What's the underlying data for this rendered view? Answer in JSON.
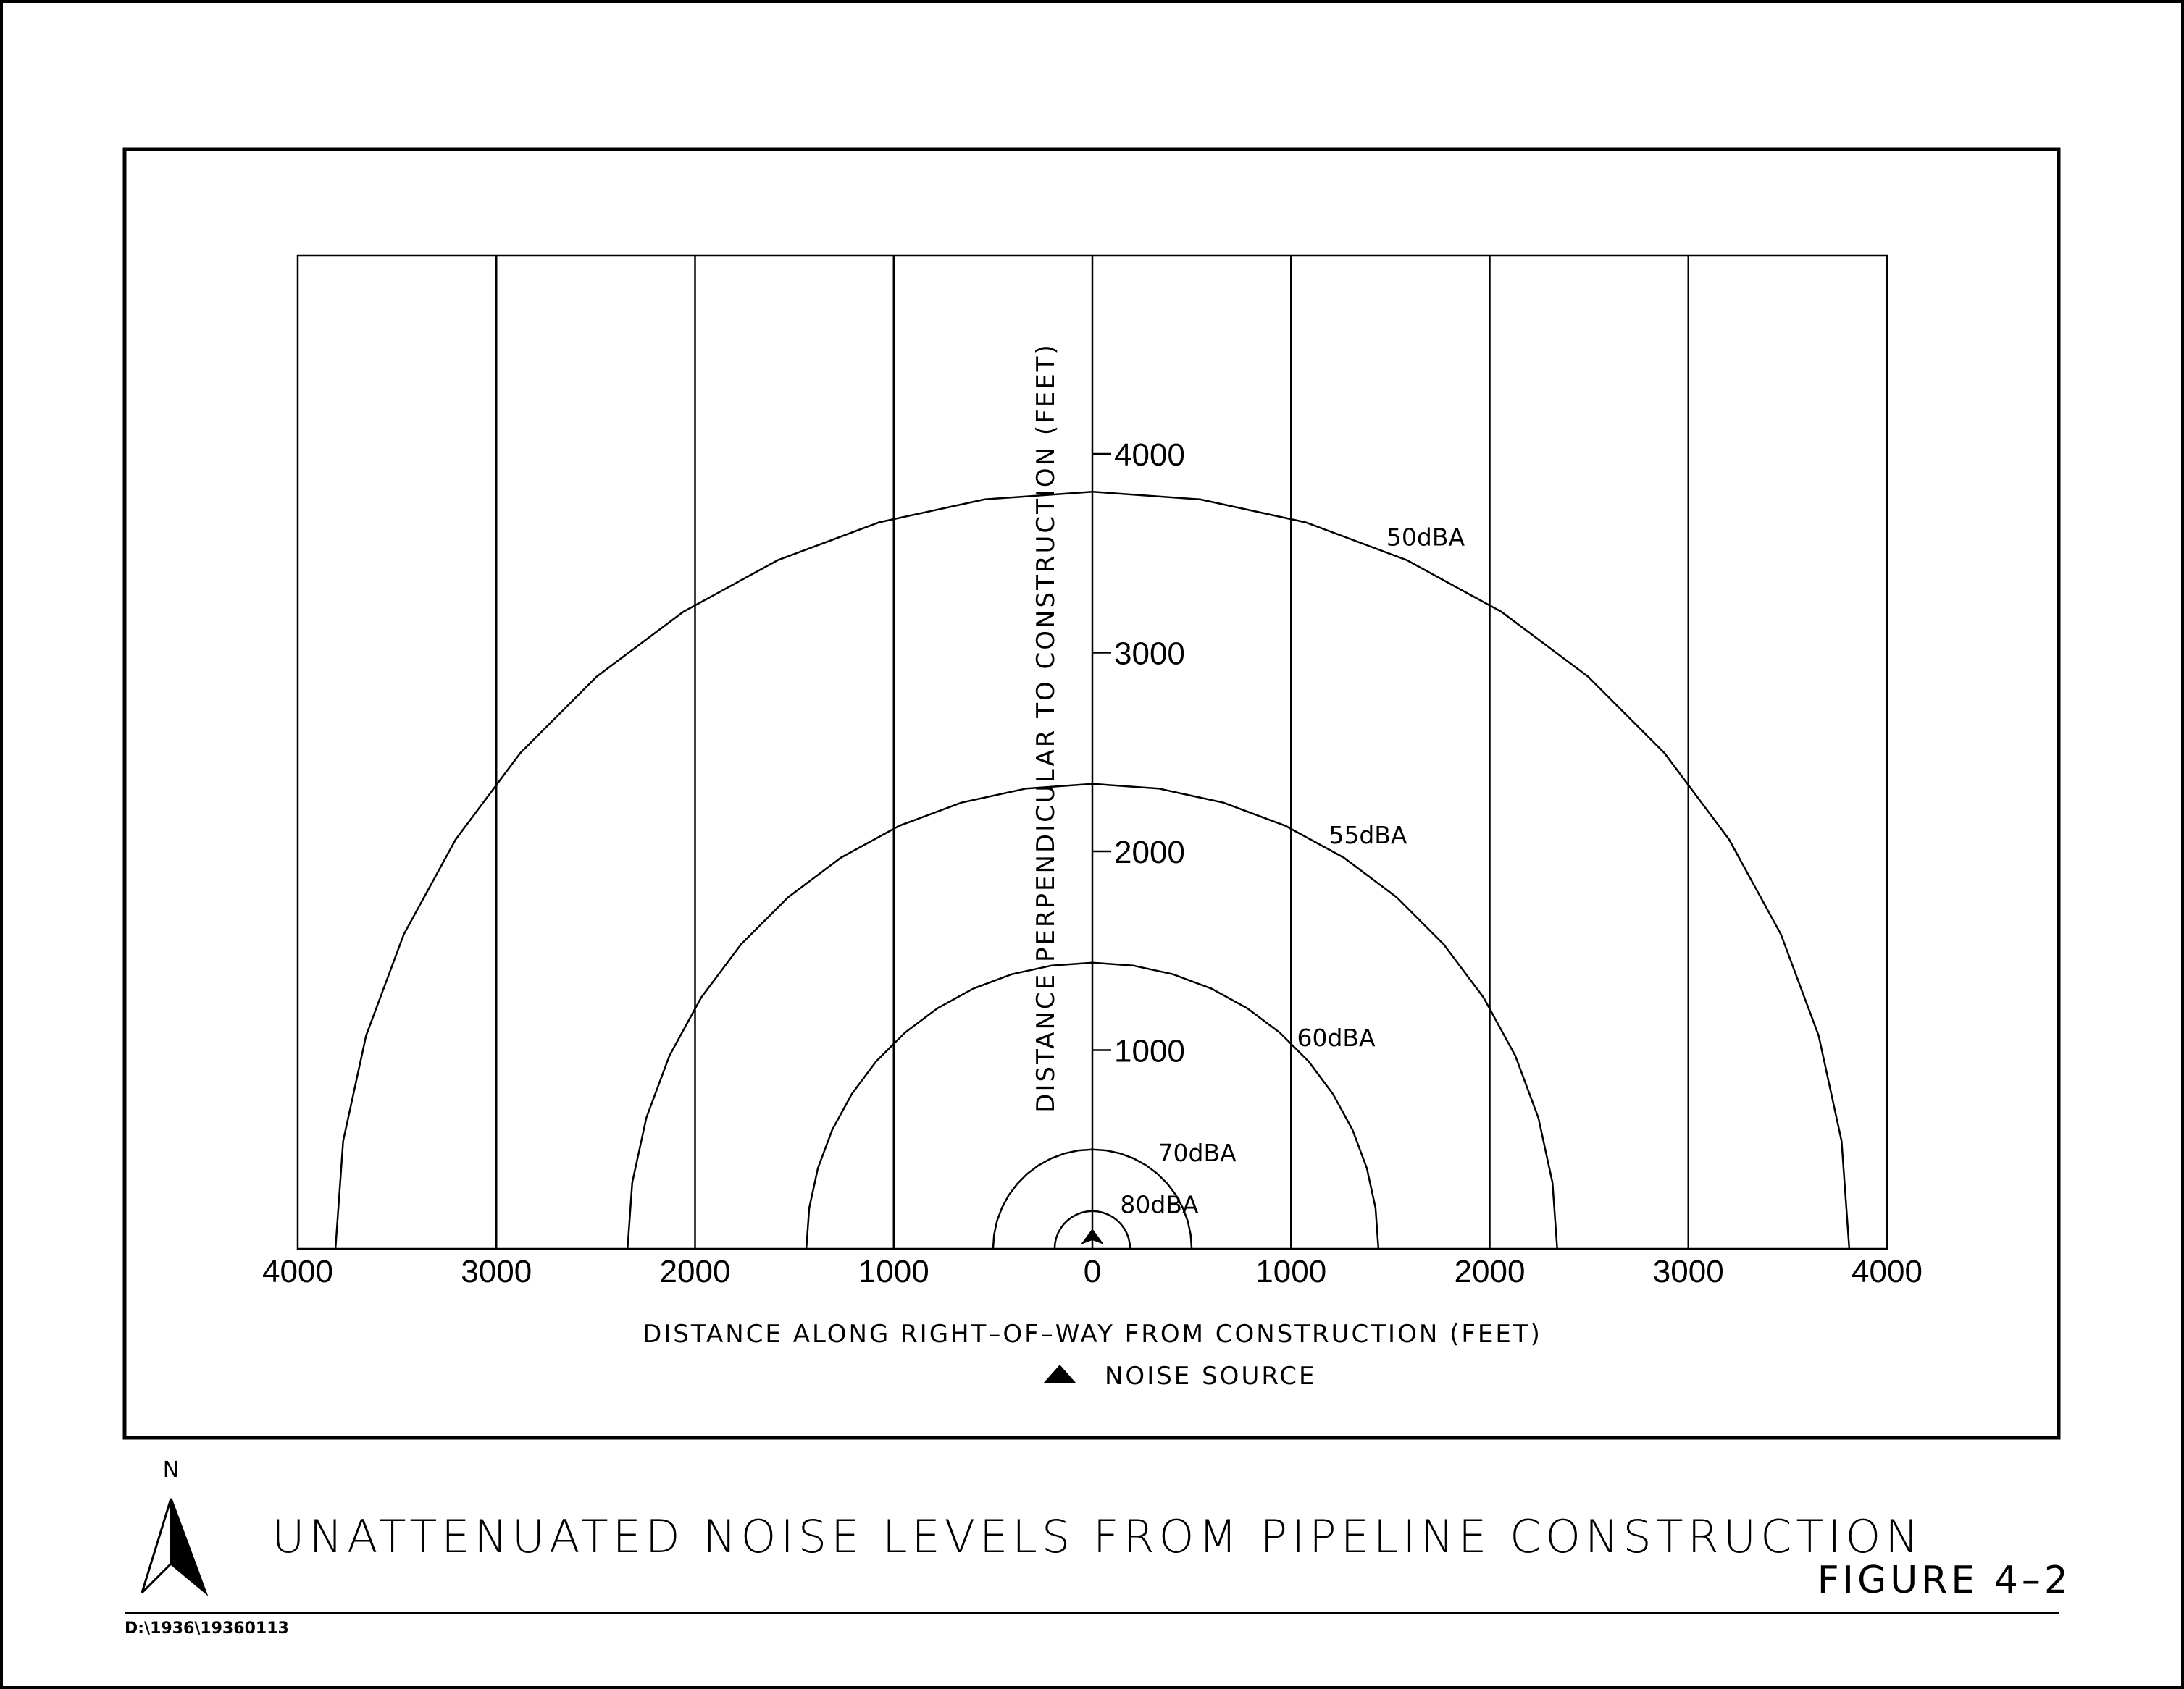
{
  "title": "UNATTENUATED NOISE LEVELS FROM PIPELINE CONSTRUCTION",
  "figure_number": "FIGURE 4–2",
  "file_path": "D:\\1936\\19360113",
  "north_label": "N",
  "legend": {
    "symbol": "noise-source-triangle",
    "label": "NOISE SOURCE"
  },
  "chart_data": {
    "type": "line",
    "xlabel": "DISTANCE ALONG RIGHT–OF–WAY FROM CONSTRUCTION (FEET)",
    "ylabel": "DISTANCE PERPENDICULAR TO CONSTRUCTION (FEET)",
    "xlim": [
      -4000,
      4000
    ],
    "ylim": [
      0,
      5000
    ],
    "x_gridlines": [
      -3000,
      -2000,
      -1000,
      0,
      1000,
      2000,
      3000
    ],
    "x_tick_labels": [
      {
        "value": -4000,
        "label": "4000"
      },
      {
        "value": -3000,
        "label": "3000"
      },
      {
        "value": -2000,
        "label": "2000"
      },
      {
        "value": -1000,
        "label": "1000"
      },
      {
        "value": 0,
        "label": "0"
      },
      {
        "value": 1000,
        "label": "1000"
      },
      {
        "value": 2000,
        "label": "2000"
      },
      {
        "value": 3000,
        "label": "3000"
      },
      {
        "value": 4000,
        "label": "4000"
      }
    ],
    "y_tick_labels": [
      {
        "value": 1000,
        "label": "1000"
      },
      {
        "value": 2000,
        "label": "2000"
      },
      {
        "value": 3000,
        "label": "3000"
      },
      {
        "value": 4000,
        "label": "4000"
      }
    ],
    "series": [
      {
        "name": "50dBA",
        "rx": 3810,
        "ry": 3810,
        "label_at": [
          1480,
          3540
        ]
      },
      {
        "name": "55dBA",
        "rx": 2340,
        "ry": 2340,
        "label_at": [
          1190,
          2040
        ]
      },
      {
        "name": "60dBA",
        "rx": 1440,
        "ry": 1440,
        "label_at": [
          1030,
          1020
        ]
      },
      {
        "name": "70dBA",
        "rx": 500,
        "ry": 500,
        "label_at": [
          330,
          440
        ]
      },
      {
        "name": "80dBA",
        "rx": 190,
        "ry": 190,
        "label_at": [
          140,
          180
        ]
      }
    ],
    "noise_source": {
      "x": 0,
      "y": 0
    },
    "grid": true
  }
}
